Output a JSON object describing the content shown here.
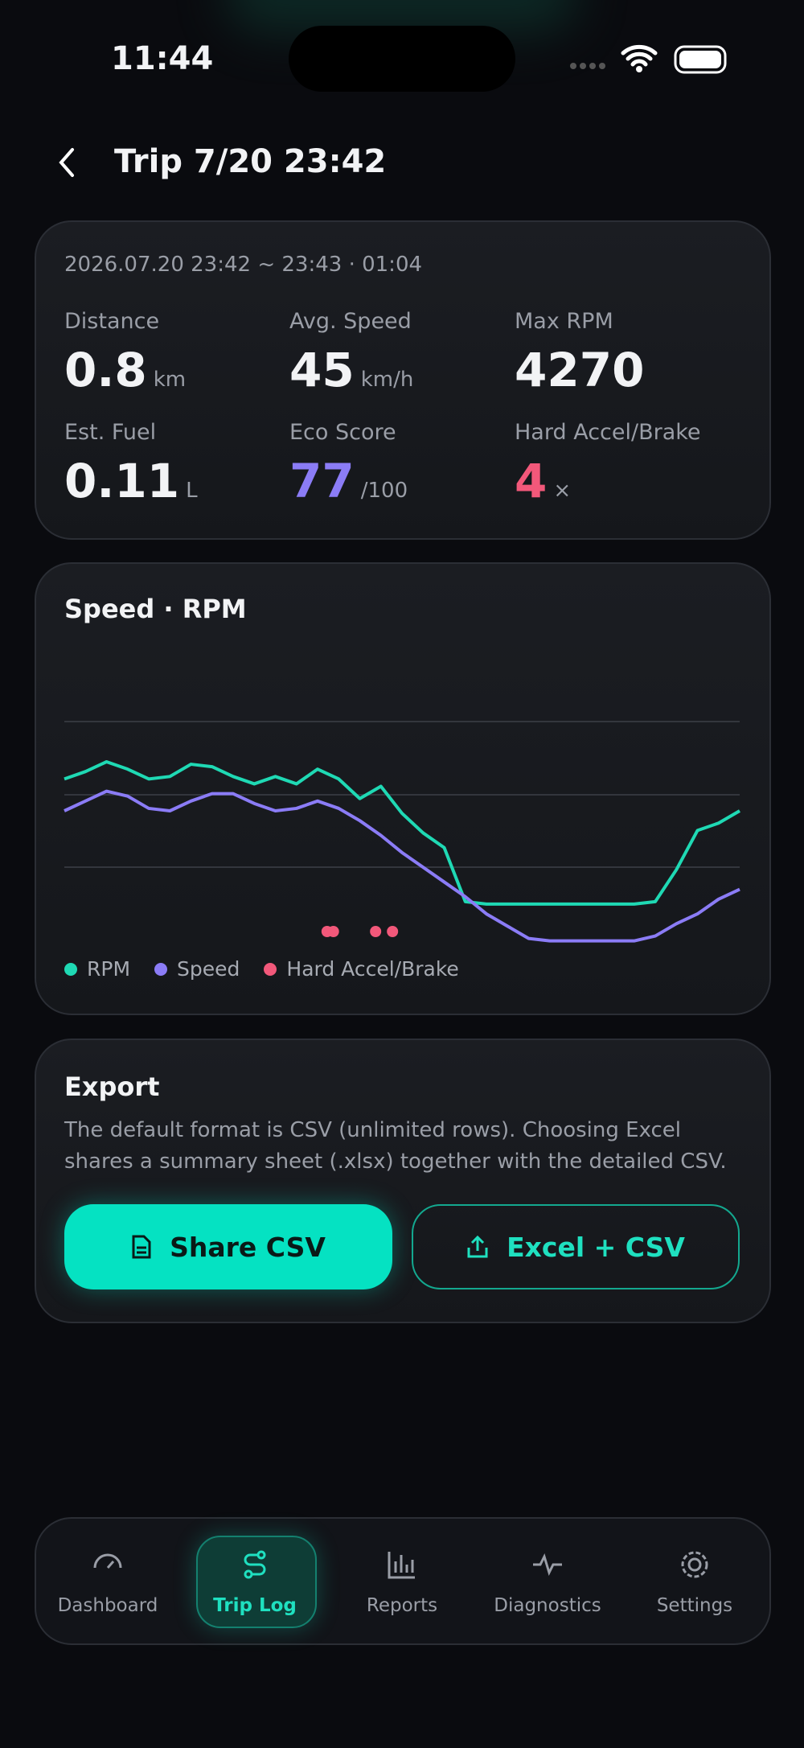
{
  "status_bar": {
    "time": "11:44"
  },
  "header": {
    "title": "Trip 7/20 23:42"
  },
  "summary": {
    "period": "2026.07.20 23:42 ~ 23:43 · 01:04",
    "stats": [
      {
        "label": "Distance",
        "value": 0.8,
        "unit": "km"
      },
      {
        "label": "Avg. Speed",
        "value": 45,
        "unit": "km/h"
      },
      {
        "label": "Max RPM",
        "value": 4270
      },
      {
        "label": "Est. Fuel",
        "value": 0.11,
        "unit": "L"
      },
      {
        "label": "Eco Score",
        "value": 77,
        "unit": "/100"
      },
      {
        "label": "Hard Accel/Brake",
        "value": 4,
        "unit": "×"
      }
    ]
  },
  "chart": {
    "type": "line",
    "title": "Speed · RPM",
    "x": [
      0,
      2,
      4,
      6,
      8,
      10,
      12,
      14,
      16,
      18,
      20,
      22,
      24,
      26,
      28,
      30,
      32,
      34,
      36,
      38,
      40,
      42,
      44,
      46,
      48,
      50,
      52,
      54,
      56,
      58,
      60,
      62,
      64
    ],
    "xlim": [
      0,
      64
    ],
    "ylim": [
      0,
      100
    ],
    "series": [
      {
        "name": "RPM",
        "color": "#1fd9b4",
        "values": [
          73,
          76,
          80,
          77,
          73,
          74,
          79,
          78,
          74,
          71,
          74,
          71,
          77,
          73,
          65,
          70,
          59,
          51,
          45,
          23,
          22,
          22,
          22,
          22,
          22,
          22,
          22,
          22,
          23,
          36,
          52,
          55,
          60
        ]
      },
      {
        "name": "Speed",
        "color": "#8b7cf6",
        "values": [
          60,
          64,
          68,
          66,
          61,
          60,
          64,
          67,
          67,
          63,
          60,
          61,
          64,
          61,
          56,
          50,
          43,
          37,
          31,
          25,
          18,
          13,
          8,
          7,
          7,
          7,
          7,
          7,
          9,
          14,
          18,
          24,
          28
        ]
      }
    ],
    "events": {
      "name": "Hard Accel/Brake",
      "color": "#f2587a",
      "x": [
        24.9,
        25.5,
        29.5,
        31.1
      ]
    }
  },
  "export": {
    "title": "Export",
    "description": "The default format is CSV (unlimited rows). Choosing Excel shares a summary sheet (.xlsx) together with the detailed CSV.",
    "buttons": [
      "Share CSV",
      "Excel + CSV"
    ]
  },
  "nav": {
    "items": [
      "Dashboard",
      "Trip Log",
      "Reports",
      "Diagnostics",
      "Settings"
    ],
    "active": 1
  }
}
